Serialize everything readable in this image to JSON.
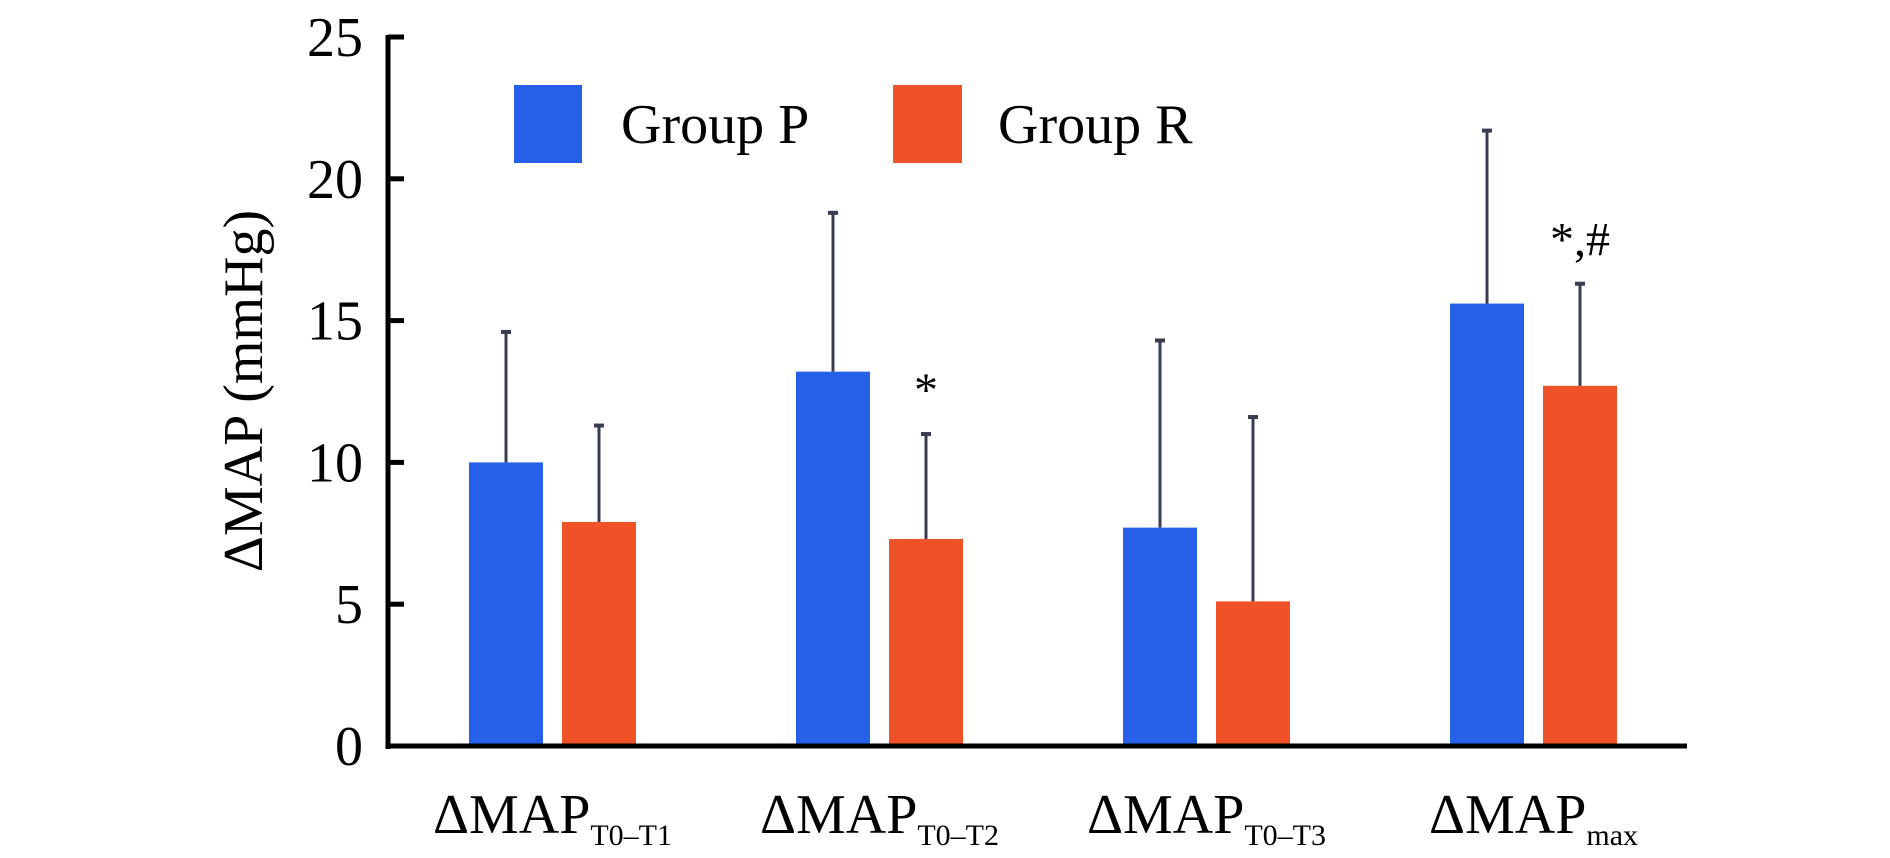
{
  "chart_data": {
    "type": "bar",
    "title": "",
    "xlabel": "",
    "ylabel": "ΔMAP (mmHg)",
    "ylim": [
      0,
      25
    ],
    "yticks": [
      0,
      5,
      10,
      15,
      20,
      25
    ],
    "grid": false,
    "legend_position": "top",
    "categories": [
      {
        "main": "ΔMAP",
        "sub": "T0–T1"
      },
      {
        "main": "ΔMAP",
        "sub": "T0–T2"
      },
      {
        "main": "ΔMAP",
        "sub": "T0–T3"
      },
      {
        "main": "ΔMAP",
        "sub": "max"
      }
    ],
    "series": [
      {
        "name": "Group P",
        "color": "#2660e8",
        "values": [
          10.0,
          13.2,
          7.7,
          15.6
        ],
        "error_upper": [
          14.6,
          18.8,
          14.3,
          21.7
        ]
      },
      {
        "name": "Group R",
        "color": "#f05228",
        "values": [
          7.9,
          7.3,
          5.1,
          12.7
        ],
        "error_upper": [
          11.3,
          11.0,
          11.6,
          16.3
        ]
      }
    ],
    "annotations": [
      {
        "category_index": 1,
        "series_index": 1,
        "text": "*"
      },
      {
        "category_index": 3,
        "series_index": 1,
        "text": "*,#"
      }
    ]
  }
}
